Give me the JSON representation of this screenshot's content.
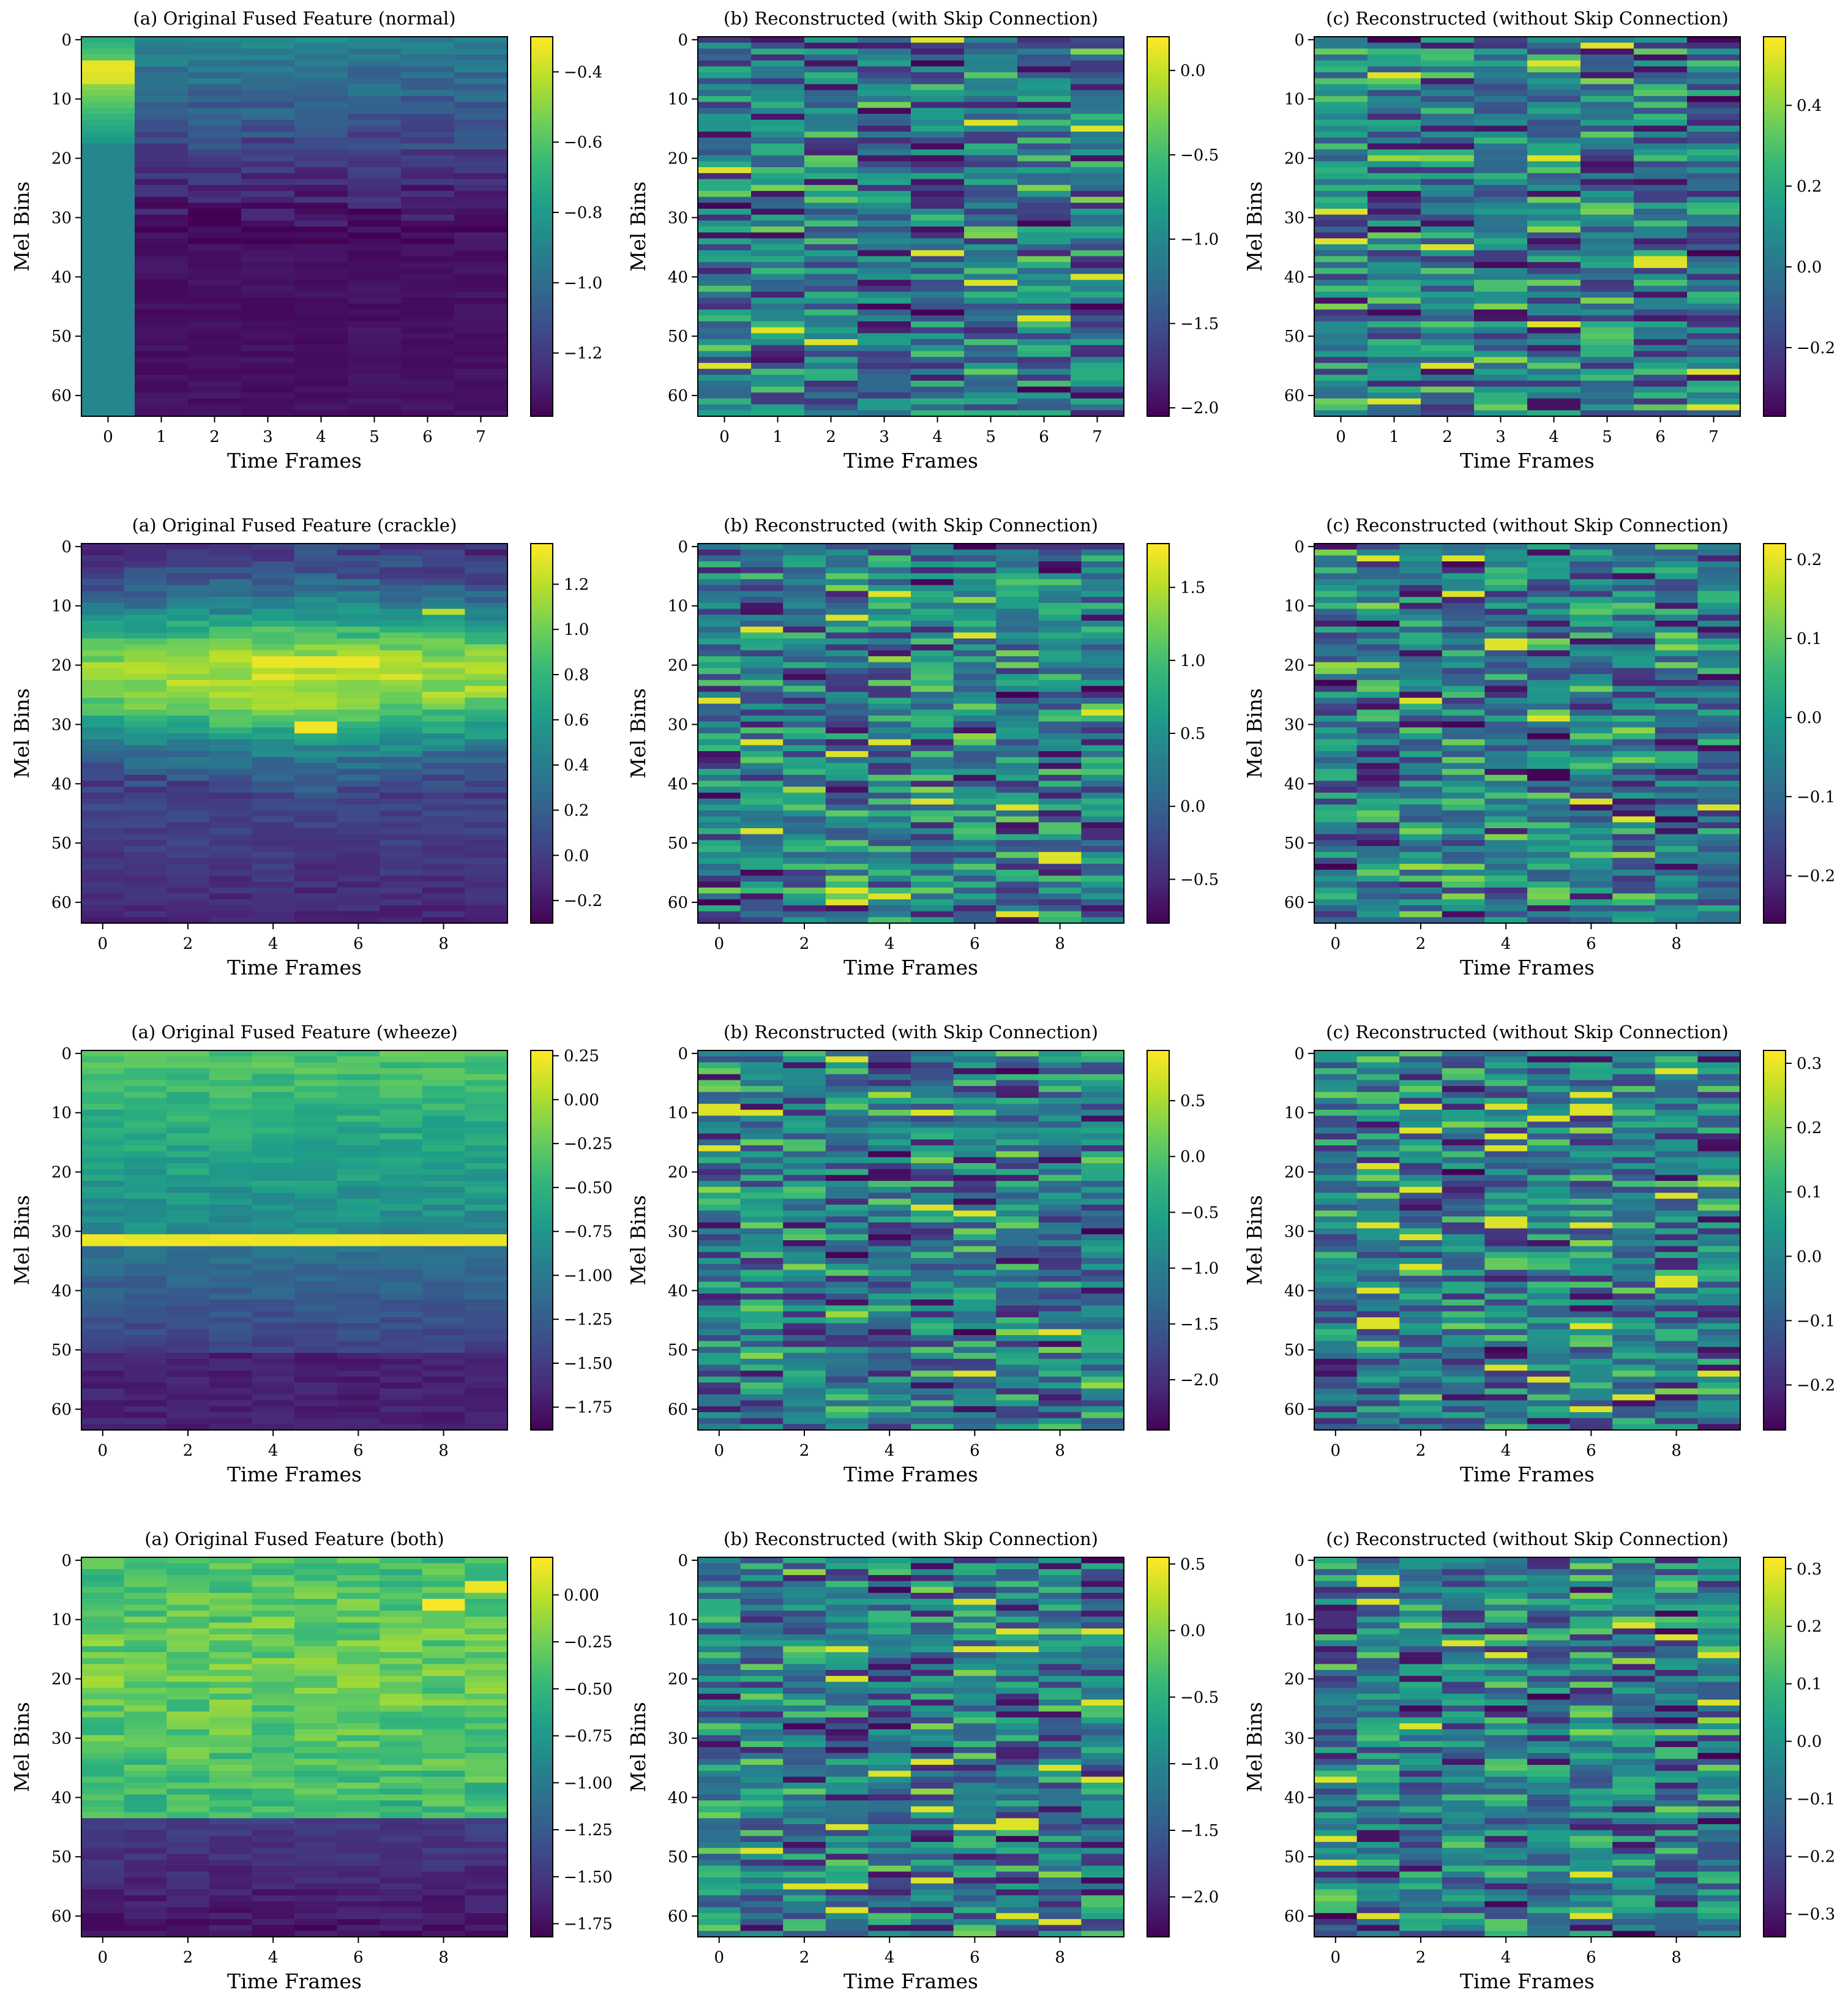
{
  "figure": {
    "colormap": "viridis",
    "colormap_stops": [
      "#440154",
      "#482878",
      "#3e4989",
      "#31688e",
      "#26828e",
      "#1f9e89",
      "#35b779",
      "#6ece58",
      "#b5de2b",
      "#fde725"
    ]
  },
  "chart_data": [
    {
      "type": "heatmap",
      "title": "(a) Original Fused Feature (normal)",
      "xlabel": "Time Frames",
      "ylabel": "Mel Bins",
      "cols": 8,
      "rows": 64,
      "xticks": [
        "0",
        "1",
        "2",
        "3",
        "4",
        "5",
        "6",
        "7"
      ],
      "yticks": [
        "0",
        "10",
        "20",
        "30",
        "40",
        "50",
        "60"
      ],
      "vmin": -1.38,
      "vmax": -0.3,
      "cbar_ticks": [
        "-0.4",
        "-0.6",
        "-0.8",
        "-1.0",
        "-1.2"
      ],
      "cbar_values": [
        -0.4,
        -0.6,
        -0.8,
        -1.0,
        -1.2
      ],
      "pattern": "normal",
      "seed": 11
    },
    {
      "type": "heatmap",
      "title": "(b) Reconstructed (with Skip Connection)",
      "xlabel": "Time Frames",
      "ylabel": "Mel Bins",
      "cols": 8,
      "rows": 64,
      "xticks": [
        "0",
        "1",
        "2",
        "3",
        "4",
        "5",
        "6",
        "7"
      ],
      "yticks": [
        "0",
        "10",
        "20",
        "30",
        "40",
        "50",
        "60"
      ],
      "vmin": -2.05,
      "vmax": 0.2,
      "cbar_ticks": [
        "0.0",
        "-0.5",
        "-1.0",
        "-1.5",
        "-2.0"
      ],
      "cbar_values": [
        0.0,
        -0.5,
        -1.0,
        -1.5,
        -2.0
      ],
      "pattern": "noise",
      "seed": 12
    },
    {
      "type": "heatmap",
      "title": "(c) Reconstructed (without Skip Connection)",
      "xlabel": "Time Frames",
      "ylabel": "Mel Bins",
      "cols": 8,
      "rows": 64,
      "xticks": [
        "0",
        "1",
        "2",
        "3",
        "4",
        "5",
        "6",
        "7"
      ],
      "yticks": [
        "0",
        "10",
        "20",
        "30",
        "40",
        "50",
        "60"
      ],
      "vmin": -0.37,
      "vmax": 0.57,
      "cbar_ticks": [
        "0.4",
        "0.2",
        "0.0",
        "-0.2"
      ],
      "cbar_values": [
        0.4,
        0.2,
        0.0,
        -0.2
      ],
      "pattern": "noise",
      "seed": 13
    },
    {
      "type": "heatmap",
      "title": "(a) Original Fused Feature (crackle)",
      "xlabel": "Time Frames",
      "ylabel": "Mel Bins",
      "cols": 10,
      "rows": 64,
      "xticks": [
        "0",
        "2",
        "4",
        "6",
        "8"
      ],
      "yticks": [
        "0",
        "10",
        "20",
        "30",
        "40",
        "50",
        "60"
      ],
      "vmin": -0.3,
      "vmax": 1.38,
      "cbar_ticks": [
        "1.2",
        "1.0",
        "0.8",
        "0.6",
        "0.4",
        "0.2",
        "0.0",
        "-0.2"
      ],
      "cbar_values": [
        1.2,
        1.0,
        0.8,
        0.6,
        0.4,
        0.2,
        0.0,
        -0.2
      ],
      "pattern": "crackle",
      "seed": 21
    },
    {
      "type": "heatmap",
      "title": "(b) Reconstructed (with Skip Connection)",
      "xlabel": "Time Frames",
      "ylabel": "Mel Bins",
      "cols": 10,
      "rows": 64,
      "xticks": [
        "0",
        "2",
        "4",
        "6",
        "8"
      ],
      "yticks": [
        "0",
        "10",
        "20",
        "30",
        "40",
        "50",
        "60"
      ],
      "vmin": -0.8,
      "vmax": 1.8,
      "cbar_ticks": [
        "1.5",
        "1.0",
        "0.5",
        "0.0",
        "-0.5"
      ],
      "cbar_values": [
        1.5,
        1.0,
        0.5,
        0.0,
        -0.5
      ],
      "pattern": "noise",
      "seed": 22
    },
    {
      "type": "heatmap",
      "title": "(c) Reconstructed (without Skip Connection)",
      "xlabel": "Time Frames",
      "ylabel": "Mel Bins",
      "cols": 10,
      "rows": 64,
      "xticks": [
        "0",
        "2",
        "4",
        "6",
        "8"
      ],
      "yticks": [
        "0",
        "10",
        "20",
        "30",
        "40",
        "50",
        "60"
      ],
      "vmin": -0.26,
      "vmax": 0.22,
      "cbar_ticks": [
        "0.2",
        "0.1",
        "0.0",
        "-0.1",
        "-0.2"
      ],
      "cbar_values": [
        0.2,
        0.1,
        0.0,
        -0.1,
        -0.2
      ],
      "pattern": "noise",
      "seed": 23
    },
    {
      "type": "heatmap",
      "title": "(a) Original Fused Feature (wheeze)",
      "xlabel": "Time Frames",
      "ylabel": "Mel Bins",
      "cols": 10,
      "rows": 64,
      "xticks": [
        "0",
        "2",
        "4",
        "6",
        "8"
      ],
      "yticks": [
        "0",
        "10",
        "20",
        "30",
        "40",
        "50",
        "60"
      ],
      "vmin": -1.88,
      "vmax": 0.28,
      "cbar_ticks": [
        "0.25",
        "0.00",
        "-0.25",
        "-0.50",
        "-0.75",
        "-1.00",
        "-1.25",
        "-1.50",
        "-1.75"
      ],
      "cbar_values": [
        0.25,
        0.0,
        -0.25,
        -0.5,
        -0.75,
        -1.0,
        -1.25,
        -1.5,
        -1.75
      ],
      "pattern": "wheeze",
      "seed": 31
    },
    {
      "type": "heatmap",
      "title": "(b) Reconstructed (with Skip Connection)",
      "xlabel": "Time Frames",
      "ylabel": "Mel Bins",
      "cols": 10,
      "rows": 64,
      "xticks": [
        "0",
        "2",
        "4",
        "6",
        "8"
      ],
      "yticks": [
        "0",
        "10",
        "20",
        "30",
        "40",
        "50",
        "60"
      ],
      "vmin": -2.45,
      "vmax": 0.95,
      "cbar_ticks": [
        "0.5",
        "0.0",
        "-0.5",
        "-1.0",
        "-1.5",
        "-2.0"
      ],
      "cbar_values": [
        0.5,
        0.0,
        -0.5,
        -1.0,
        -1.5,
        -2.0
      ],
      "pattern": "noise",
      "seed": 32
    },
    {
      "type": "heatmap",
      "title": "(c) Reconstructed (without Skip Connection)",
      "xlabel": "Time Frames",
      "ylabel": "Mel Bins",
      "cols": 10,
      "rows": 64,
      "xticks": [
        "0",
        "2",
        "4",
        "6",
        "8"
      ],
      "yticks": [
        "0",
        "10",
        "20",
        "30",
        "40",
        "50",
        "60"
      ],
      "vmin": -0.27,
      "vmax": 0.32,
      "cbar_ticks": [
        "0.3",
        "0.2",
        "0.1",
        "0.0",
        "-0.1",
        "-0.2"
      ],
      "cbar_values": [
        0.3,
        0.2,
        0.1,
        0.0,
        -0.1,
        -0.2
      ],
      "pattern": "noise",
      "seed": 33
    },
    {
      "type": "heatmap",
      "title": "(a) Original Fused Feature (both)",
      "xlabel": "Time Frames",
      "ylabel": "Mel Bins",
      "cols": 10,
      "rows": 64,
      "xticks": [
        "0",
        "2",
        "4",
        "6",
        "8"
      ],
      "yticks": [
        "0",
        "10",
        "20",
        "30",
        "40",
        "50",
        "60"
      ],
      "vmin": -1.82,
      "vmax": 0.2,
      "cbar_ticks": [
        "0.00",
        "-0.25",
        "-0.50",
        "-0.75",
        "-1.00",
        "-1.25",
        "-1.50",
        "-1.75"
      ],
      "cbar_values": [
        0.0,
        -0.25,
        -0.5,
        -0.75,
        -1.0,
        -1.25,
        -1.5,
        -1.75
      ],
      "pattern": "both",
      "seed": 41
    },
    {
      "type": "heatmap",
      "title": "(b) Reconstructed (with Skip Connection)",
      "xlabel": "Time Frames",
      "ylabel": "Mel Bins",
      "cols": 10,
      "rows": 64,
      "xticks": [
        "0",
        "2",
        "4",
        "6",
        "8"
      ],
      "yticks": [
        "0",
        "10",
        "20",
        "30",
        "40",
        "50",
        "60"
      ],
      "vmin": -2.3,
      "vmax": 0.55,
      "cbar_ticks": [
        "0.5",
        "0.0",
        "-0.5",
        "-1.0",
        "-1.5",
        "-2.0"
      ],
      "cbar_values": [
        0.5,
        0.0,
        -0.5,
        -1.0,
        -1.5,
        -2.0
      ],
      "pattern": "noise",
      "seed": 42
    },
    {
      "type": "heatmap",
      "title": "(c) Reconstructed (without Skip Connection)",
      "xlabel": "Time Frames",
      "ylabel": "Mel Bins",
      "cols": 10,
      "rows": 64,
      "xticks": [
        "0",
        "2",
        "4",
        "6",
        "8"
      ],
      "yticks": [
        "0",
        "10",
        "20",
        "30",
        "40",
        "50",
        "60"
      ],
      "vmin": -0.34,
      "vmax": 0.32,
      "cbar_ticks": [
        "0.3",
        "0.2",
        "0.1",
        "0.0",
        "-0.1",
        "-0.2",
        "-0.3"
      ],
      "cbar_values": [
        0.3,
        0.2,
        0.1,
        0.0,
        -0.1,
        -0.2,
        -0.3
      ],
      "pattern": "noise",
      "seed": 43
    }
  ]
}
